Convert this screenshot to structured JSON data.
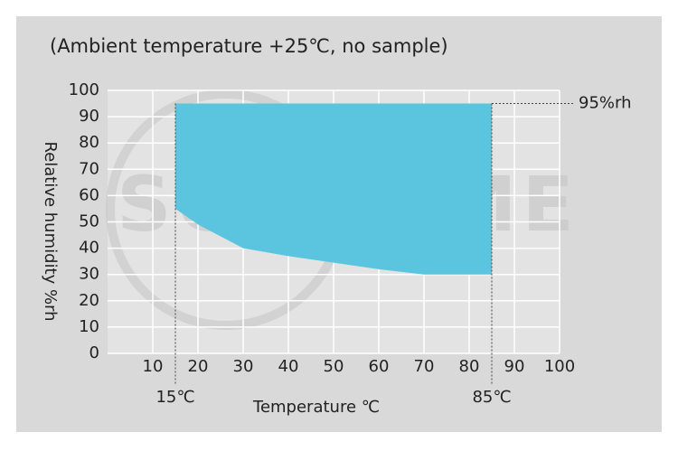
{
  "chart_data": {
    "type": "area",
    "title": "(Ambient temperature +25℃, no sample)",
    "xlabel": "Temperature ℃",
    "ylabel": "Relative humidity %rh",
    "watermark": "SONACME",
    "x": [
      15,
      20,
      30,
      40,
      50,
      60,
      70,
      85
    ],
    "upper": [
      95,
      95,
      95,
      95,
      95,
      95,
      95,
      95
    ],
    "lower": [
      55,
      49,
      40,
      37,
      34.5,
      32,
      30,
      30
    ],
    "color": "#5bc5df",
    "xlim": [
      0,
      100
    ],
    "xticks": [
      10,
      20,
      30,
      40,
      50,
      60,
      70,
      80,
      90,
      100
    ],
    "ylim": [
      0,
      100
    ],
    "yticks": [
      0,
      10,
      20,
      30,
      40,
      50,
      60,
      70,
      80,
      90,
      100
    ],
    "grid": true,
    "annotations": [
      {
        "label": "15℃",
        "x": 15
      },
      {
        "label": "85℃",
        "x": 85
      },
      {
        "label": "95%rh",
        "y": 95
      }
    ]
  }
}
